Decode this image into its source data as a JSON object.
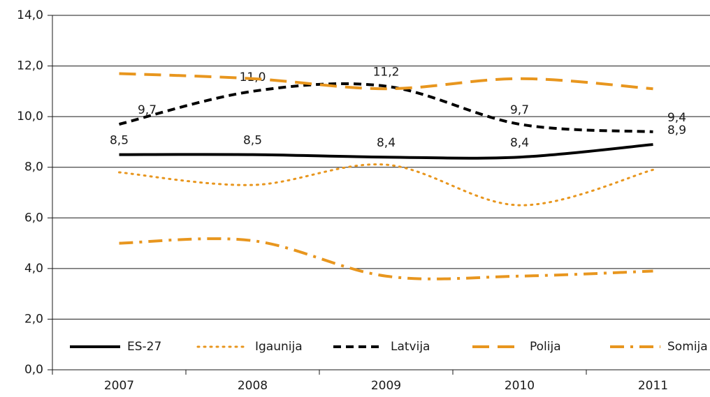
{
  "chart_data": {
    "type": "line",
    "categories": [
      "2007",
      "2008",
      "2009",
      "2010",
      "2011"
    ],
    "ylim": [
      0,
      14
    ],
    "yticks": [
      {
        "value": 0,
        "label": "0,0"
      },
      {
        "value": 2,
        "label": "2,0"
      },
      {
        "value": 4,
        "label": "4,0"
      },
      {
        "value": 6,
        "label": "6,0"
      },
      {
        "value": 8,
        "label": "8,0"
      },
      {
        "value": 10,
        "label": "10,0"
      },
      {
        "value": 12,
        "label": "12,0"
      },
      {
        "value": 14,
        "label": "14,0"
      }
    ],
    "grid": true,
    "legend": "bottom",
    "series": [
      {
        "name": "ES-27",
        "color": "#000000",
        "style": "solid",
        "values": [
          8.5,
          8.5,
          8.4,
          8.4,
          8.9
        ],
        "value_labels": [
          "8,5",
          "8,5",
          "8,4",
          "8,4",
          "8,9"
        ]
      },
      {
        "name": "Igaunija",
        "color": "#e8961e",
        "style": "dotted",
        "values": [
          7.8,
          7.3,
          8.1,
          6.5,
          7.9
        ]
      },
      {
        "name": "Latvija",
        "color": "#000000",
        "style": "dashed",
        "values": [
          9.7,
          11.0,
          11.2,
          9.7,
          9.4
        ],
        "value_labels": [
          "9,7",
          "11,0",
          "11,2",
          "9,7",
          "9,4"
        ]
      },
      {
        "name": "Polija",
        "color": "#e8961e",
        "style": "longdash",
        "values": [
          11.7,
          11.5,
          11.1,
          11.5,
          11.1
        ]
      },
      {
        "name": "Somija",
        "color": "#e8961e",
        "style": "dashdot",
        "values": [
          5.0,
          5.1,
          3.7,
          3.7,
          3.9
        ]
      }
    ]
  }
}
